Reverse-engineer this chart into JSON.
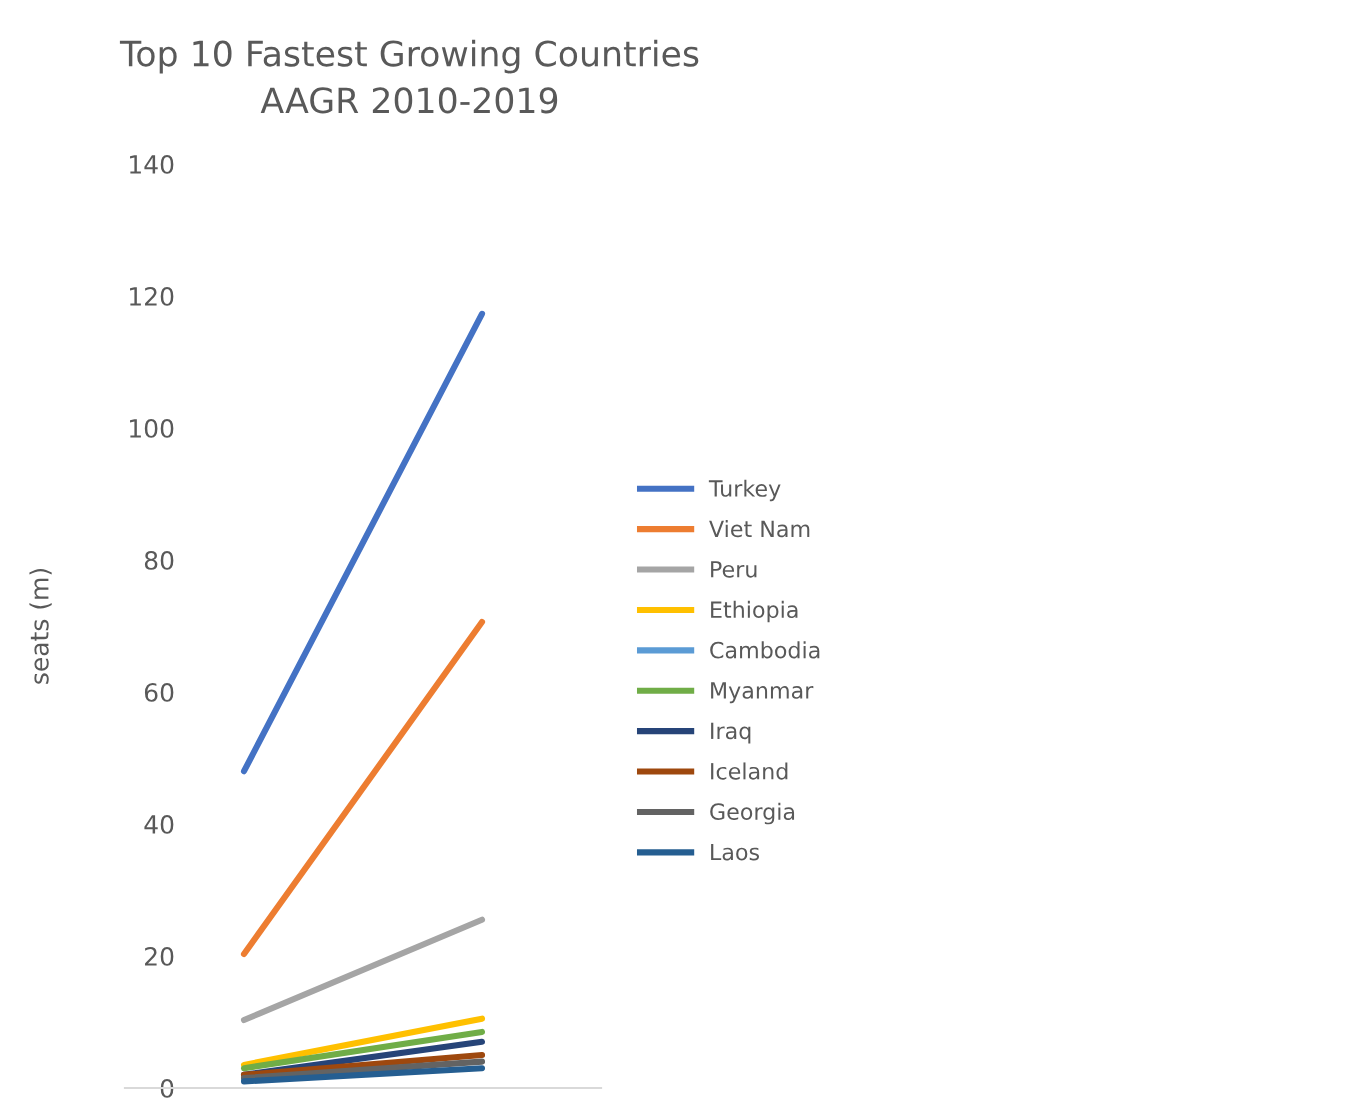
{
  "chart_data": {
    "type": "line",
    "title": "Top 10 Fastest Growing Countries\nAAGR 2010-2019",
    "ylabel": "seats (m)",
    "categories": [
      null,
      null
    ],
    "series": [
      {
        "name": "Turkey",
        "color": "#4472c4",
        "values": [
          48,
          117.3
        ]
      },
      {
        "name": "Viet Nam",
        "color": "#ed7d31",
        "values": [
          20.3,
          70.6
        ]
      },
      {
        "name": "Peru",
        "color": "#a5a5a5",
        "values": [
          10.3,
          25.5
        ]
      },
      {
        "name": "Ethiopia",
        "color": "#ffc000",
        "values": [
          3.5,
          10.5
        ]
      },
      {
        "name": "Cambodia",
        "color": "#5b9bd5",
        "values": [
          null,
          null
        ]
      },
      {
        "name": "Myanmar",
        "color": "#70ad47",
        "values": [
          3,
          8.5
        ]
      },
      {
        "name": "Iraq",
        "color": "#264478",
        "values": [
          2,
          7
        ]
      },
      {
        "name": "Iceland",
        "color": "#9e480e",
        "values": [
          2,
          5
        ]
      },
      {
        "name": "Georgia",
        "color": "#636363",
        "values": [
          1.5,
          4
        ]
      },
      {
        "name": "Laos",
        "color": "#255e91",
        "values": [
          1,
          3
        ]
      }
    ],
    "ylim": [
      0,
      140
    ],
    "yticks": [
      0,
      20,
      40,
      60,
      80,
      100,
      120,
      140
    ],
    "grid": false,
    "legend": "right",
    "marker": "none",
    "line_style": "solid"
  }
}
